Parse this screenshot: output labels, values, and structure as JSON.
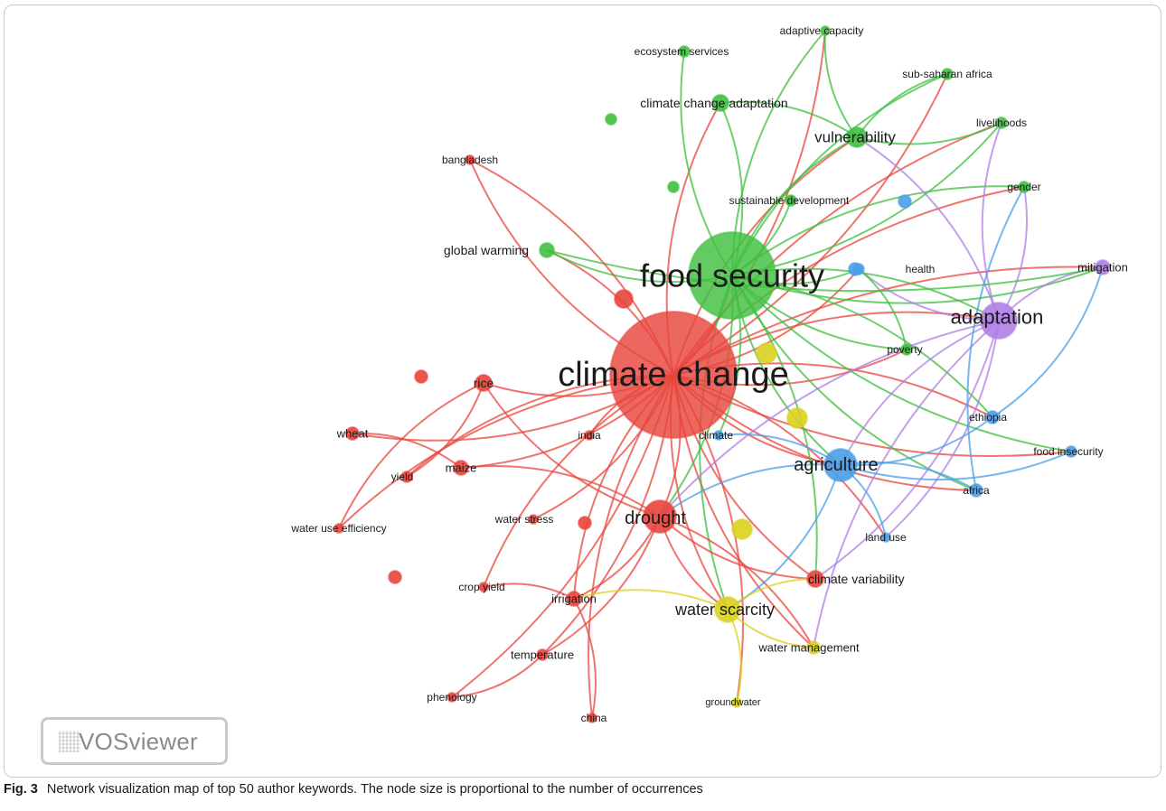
{
  "clusters": {
    "red": "#e8453c",
    "green": "#3fbf3f",
    "blue": "#4a9fe8",
    "yellow": "#d9d21e",
    "purple": "#b07fe6"
  },
  "nodes": [
    {
      "id": "climate-change",
      "label": "climate change",
      "cluster": "red",
      "weight": 100
    },
    {
      "id": "food-security",
      "label": "food security",
      "cluster": "green",
      "weight": 60
    },
    {
      "id": "adaptation",
      "label": "adaptation",
      "cluster": "purple",
      "weight": 22
    },
    {
      "id": "agriculture",
      "label": "agriculture",
      "cluster": "blue",
      "weight": 20
    },
    {
      "id": "drought",
      "label": "drought",
      "cluster": "red",
      "weight": 20
    },
    {
      "id": "water-scarcity",
      "label": "water scarcity",
      "cluster": "yellow",
      "weight": 14
    },
    {
      "id": "vulnerability",
      "label": "vulnerability",
      "cluster": "green",
      "weight": 11
    },
    {
      "id": "climate-change-adaptation",
      "label": "climate change adaptation",
      "cluster": "green",
      "weight": 8
    },
    {
      "id": "climate-variability",
      "label": "climate variability",
      "cluster": "red",
      "weight": 8
    },
    {
      "id": "rice",
      "label": "rice",
      "cluster": "red",
      "weight": 8
    },
    {
      "id": "irrigation",
      "label": "irrigation",
      "cluster": "red",
      "weight": 7
    },
    {
      "id": "maize",
      "label": "maize",
      "cluster": "red",
      "weight": 7
    },
    {
      "id": "global-warming",
      "label": "global warming",
      "cluster": "green",
      "weight": 7
    },
    {
      "id": "mitigation",
      "label": "mitigation",
      "cluster": "purple",
      "weight": 7
    },
    {
      "id": "water-management",
      "label": "water management",
      "cluster": "yellow",
      "weight": 7
    },
    {
      "id": "ethiopia",
      "label": "ethiopia",
      "cluster": "blue",
      "weight": 6
    },
    {
      "id": "africa",
      "label": "africa",
      "cluster": "blue",
      "weight": 6
    },
    {
      "id": "wheat",
      "label": "wheat",
      "cluster": "red",
      "weight": 6
    },
    {
      "id": "yield",
      "label": "yield",
      "cluster": "red",
      "weight": 5
    },
    {
      "id": "temperature",
      "label": "temperature",
      "cluster": "red",
      "weight": 5
    },
    {
      "id": "sub-saharan-africa",
      "label": "sub-saharan africa",
      "cluster": "green",
      "weight": 5
    },
    {
      "id": "livelihoods",
      "label": "livelihoods",
      "cluster": "green",
      "weight": 5
    },
    {
      "id": "ecosystem-services",
      "label": "ecosystem services",
      "cluster": "green",
      "weight": 5
    },
    {
      "id": "poverty",
      "label": "poverty",
      "cluster": "green",
      "weight": 5
    },
    {
      "id": "gender",
      "label": "gender",
      "cluster": "green",
      "weight": 5
    },
    {
      "id": "food-insecurity",
      "label": "food insecurity",
      "cluster": "blue",
      "weight": 5
    },
    {
      "id": "sustainable-development",
      "label": "sustainable development",
      "cluster": "green",
      "weight": 5
    },
    {
      "id": "adaptive-capacity",
      "label": "adaptive capacity",
      "cluster": "green",
      "weight": 4
    },
    {
      "id": "bangladesh",
      "label": "bangladesh",
      "cluster": "red",
      "weight": 4
    },
    {
      "id": "india",
      "label": "india",
      "cluster": "red",
      "weight": 4
    },
    {
      "id": "climate",
      "label": "climate",
      "cluster": "blue",
      "weight": 4
    },
    {
      "id": "health",
      "label": "health",
      "cluster": "blue",
      "weight": 4
    },
    {
      "id": "land-use",
      "label": "land use",
      "cluster": "blue",
      "weight": 4
    },
    {
      "id": "water-use-efficiency",
      "label": "water use efficiency",
      "cluster": "red",
      "weight": 4
    },
    {
      "id": "water-stress",
      "label": "water stress",
      "cluster": "red",
      "weight": 4
    },
    {
      "id": "crop-yield",
      "label": "crop yield",
      "cluster": "red",
      "weight": 4
    },
    {
      "id": "phenology",
      "label": "phenology",
      "cluster": "red",
      "weight": 4
    },
    {
      "id": "china",
      "label": "china",
      "cluster": "red",
      "weight": 4
    },
    {
      "id": "groundwater",
      "label": "groundwater",
      "cluster": "yellow",
      "weight": 3
    },
    {
      "id": "unlabeled-red-1",
      "label": "",
      "cluster": "red",
      "weight": 6
    },
    {
      "id": "unlabeled-red-2",
      "label": "",
      "cluster": "red",
      "weight": 4
    },
    {
      "id": "unlabeled-red-3",
      "label": "",
      "cluster": "red",
      "weight": 4
    },
    {
      "id": "unlabeled-red-4",
      "label": "",
      "cluster": "red",
      "weight": 4
    },
    {
      "id": "unlabeled-green-1",
      "label": "",
      "cluster": "green",
      "weight": 3
    },
    {
      "id": "unlabeled-green-2",
      "label": "",
      "cluster": "green",
      "weight": 3
    },
    {
      "id": "unlabeled-blue-1",
      "label": "",
      "cluster": "blue",
      "weight": 4
    },
    {
      "id": "unlabeled-blue-2",
      "label": "",
      "cluster": "blue",
      "weight": 4
    },
    {
      "id": "unlabeled-yellow-1",
      "label": "",
      "cluster": "yellow",
      "weight": 6
    },
    {
      "id": "unlabeled-yellow-2",
      "label": "",
      "cluster": "yellow",
      "weight": 6
    },
    {
      "id": "unlabeled-yellow-3",
      "label": "",
      "cluster": "yellow",
      "weight": 6
    }
  ],
  "links": [
    [
      "climate-change",
      "food-security"
    ],
    [
      "climate-change",
      "adaptation"
    ],
    [
      "climate-change",
      "agriculture"
    ],
    [
      "climate-change",
      "drought"
    ],
    [
      "climate-change",
      "water-scarcity"
    ],
    [
      "climate-change",
      "vulnerability"
    ],
    [
      "climate-change",
      "climate-variability"
    ],
    [
      "climate-change",
      "rice"
    ],
    [
      "climate-change",
      "irrigation"
    ],
    [
      "climate-change",
      "maize"
    ],
    [
      "climate-change",
      "global-warming"
    ],
    [
      "climate-change",
      "mitigation"
    ],
    [
      "climate-change",
      "water-management"
    ],
    [
      "climate-change",
      "ethiopia"
    ],
    [
      "climate-change",
      "africa"
    ],
    [
      "climate-change",
      "wheat"
    ],
    [
      "climate-change",
      "yield"
    ],
    [
      "climate-change",
      "temperature"
    ],
    [
      "climate-change",
      "sub-saharan-africa"
    ],
    [
      "climate-change",
      "livelihoods"
    ],
    [
      "climate-change",
      "poverty"
    ],
    [
      "climate-change",
      "gender"
    ],
    [
      "climate-change",
      "food-insecurity"
    ],
    [
      "climate-change",
      "bangladesh"
    ],
    [
      "climate-change",
      "india"
    ],
    [
      "climate-change",
      "land-use"
    ],
    [
      "climate-change",
      "water-use-efficiency"
    ],
    [
      "climate-change",
      "water-stress"
    ],
    [
      "climate-change",
      "crop-yield"
    ],
    [
      "climate-change",
      "phenology"
    ],
    [
      "climate-change",
      "china"
    ],
    [
      "climate-change",
      "groundwater"
    ],
    [
      "climate-change",
      "health"
    ],
    [
      "climate-change",
      "climate-change-adaptation"
    ],
    [
      "climate-change",
      "adaptive-capacity"
    ],
    [
      "food-security",
      "adaptation"
    ],
    [
      "food-security",
      "agriculture"
    ],
    [
      "food-security",
      "drought"
    ],
    [
      "food-security",
      "water-scarcity"
    ],
    [
      "food-security",
      "vulnerability"
    ],
    [
      "food-security",
      "climate-change-adaptation"
    ],
    [
      "food-security",
      "global-warming"
    ],
    [
      "food-security",
      "mitigation"
    ],
    [
      "food-security",
      "sub-saharan-africa"
    ],
    [
      "food-security",
      "livelihoods"
    ],
    [
      "food-security",
      "ecosystem-services"
    ],
    [
      "food-security",
      "poverty"
    ],
    [
      "food-security",
      "gender"
    ],
    [
      "food-security",
      "sustainable-development"
    ],
    [
      "food-security",
      "adaptive-capacity"
    ],
    [
      "food-security",
      "health"
    ],
    [
      "food-security",
      "ethiopia"
    ],
    [
      "food-security",
      "africa"
    ],
    [
      "food-security",
      "climate-variability"
    ],
    [
      "food-security",
      "food-insecurity"
    ],
    [
      "food-security",
      "climate"
    ],
    [
      "adaptation",
      "vulnerability"
    ],
    [
      "adaptation",
      "mitigation"
    ],
    [
      "adaptation",
      "agriculture"
    ],
    [
      "adaptation",
      "climate-variability"
    ],
    [
      "adaptation",
      "gender"
    ],
    [
      "adaptation",
      "livelihoods"
    ],
    [
      "adaptation",
      "drought"
    ],
    [
      "adaptation",
      "health"
    ],
    [
      "adaptation",
      "water-management"
    ],
    [
      "adaptation",
      "land-use"
    ],
    [
      "agriculture",
      "ethiopia"
    ],
    [
      "agriculture",
      "africa"
    ],
    [
      "agriculture",
      "food-insecurity"
    ],
    [
      "agriculture",
      "land-use"
    ],
    [
      "agriculture",
      "drought"
    ],
    [
      "agriculture",
      "water-scarcity"
    ],
    [
      "agriculture",
      "climate"
    ],
    [
      "drought",
      "irrigation"
    ],
    [
      "drought",
      "water-scarcity"
    ],
    [
      "drought",
      "rice"
    ],
    [
      "drought",
      "maize"
    ],
    [
      "drought",
      "temperature"
    ],
    [
      "drought",
      "climate-variability"
    ],
    [
      "drought",
      "water-management"
    ],
    [
      "water-scarcity",
      "water-management"
    ],
    [
      "water-scarcity",
      "groundwater"
    ],
    [
      "water-scarcity",
      "irrigation"
    ],
    [
      "water-scarcity",
      "climate-variability"
    ],
    [
      "vulnerability",
      "climate-change-adaptation"
    ],
    [
      "vulnerability",
      "adaptive-capacity"
    ],
    [
      "vulnerability",
      "livelihoods"
    ],
    [
      "vulnerability",
      "sub-saharan-africa"
    ],
    [
      "rice",
      "water-use-efficiency"
    ],
    [
      "rice",
      "yield"
    ],
    [
      "maize",
      "wheat"
    ],
    [
      "irrigation",
      "china"
    ],
    [
      "irrigation",
      "crop-yield"
    ],
    [
      "temperature",
      "phenology"
    ],
    [
      "global-warming",
      "mitigation"
    ],
    [
      "bangladesh",
      "climate-change"
    ],
    [
      "ethiopia",
      "mitigation"
    ],
    [
      "africa",
      "gender"
    ],
    [
      "poverty",
      "health"
    ]
  ],
  "logo": {
    "text": "VOSviewer"
  },
  "caption": {
    "label": "Fig. 3",
    "text": "Network visualization map of top 50 author keywords. The node size is proportional to the number of occurrences"
  }
}
